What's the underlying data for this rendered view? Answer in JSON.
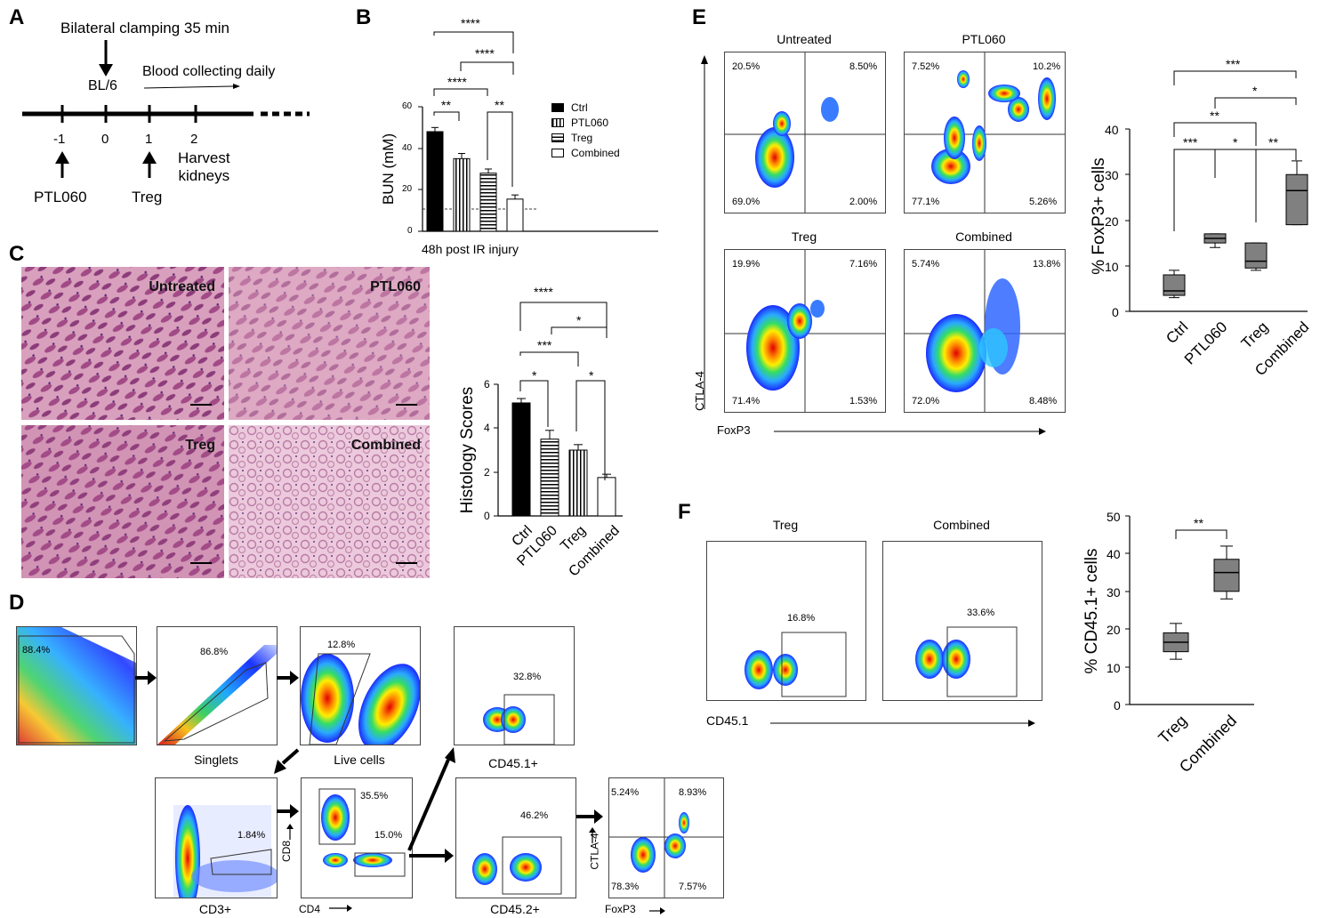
{
  "panels": {
    "A": {
      "label": "A",
      "clamping": "Bilateral clamping 35 min",
      "strain": "BL/6",
      "blood": "Blood collecting daily",
      "ticks": [
        "-1",
        "0",
        "1",
        "2"
      ],
      "ptl": "PTL060",
      "treg": "Treg",
      "harvest": "Harvest\nkidneys"
    },
    "B": {
      "label": "B",
      "ylabel": "BUN (mM)",
      "xlabel": "48h post IR injury",
      "yticks": [
        "0",
        "20",
        "40",
        "60"
      ],
      "legend": [
        "Ctrl",
        "PTL060",
        "Treg",
        "Combined"
      ],
      "sig": [
        "****",
        "****",
        "****",
        "**",
        "**"
      ]
    },
    "C": {
      "label": "C",
      "images": [
        "Untreated",
        "PTL060",
        "Treg",
        "Combined"
      ],
      "ylabel": "Histology Scores",
      "yticks": [
        "0",
        "2",
        "4",
        "6"
      ],
      "sig": [
        "****",
        "*",
        "***",
        "*",
        "*"
      ]
    },
    "D": {
      "label": "D",
      "p1": "88.4%",
      "p2": "86.8%",
      "p3": "12.8%",
      "p4": "32.8%",
      "n2": "Singlets",
      "n3": "Live cells",
      "n4": "CD45.1+",
      "p5": "1.84%",
      "n5": "CD3+",
      "p6a": "35.5%",
      "p6b": "15.0%",
      "cd8": "CD8",
      "cd4": "CD4",
      "p7": "46.2%",
      "n7": "CD45.2+",
      "q1": "5.24%",
      "q2": "8.93%",
      "q3": "78.3%",
      "q4": "7.57%",
      "ctla": "CTLA-4",
      "foxp3": "FoxP3"
    },
    "E": {
      "label": "E",
      "plots": [
        {
          "title": "Untreated",
          "q": [
            "20.5%",
            "8.50%",
            "69.0%",
            "2.00%"
          ]
        },
        {
          "title": "PTL060",
          "q": [
            "7.52%",
            "10.2%",
            "77.1%",
            "5.26%"
          ]
        },
        {
          "title": "Treg",
          "q": [
            "19.9%",
            "7.16%",
            "71.4%",
            "1.53%"
          ]
        },
        {
          "title": "Combined",
          "q": [
            "5.74%",
            "13.8%",
            "72.0%",
            "8.48%"
          ]
        }
      ],
      "yaxis": "CTLA-4",
      "xaxis": "FoxP3",
      "ylabel": "% FoxP3+ cells",
      "yticks": [
        "0",
        "10",
        "20",
        "30",
        "40"
      ],
      "sig": [
        "***",
        "*",
        "**",
        "***",
        "*",
        "**"
      ]
    },
    "F": {
      "label": "F",
      "plots": [
        {
          "title": "Treg",
          "pct": "16.8%"
        },
        {
          "title": "Combined",
          "pct": "33.6%"
        }
      ],
      "xaxis": "CD45.1",
      "ylabel": "% CD45.1+ cells",
      "yticks": [
        "0",
        "10",
        "20",
        "30",
        "40",
        "50"
      ],
      "sig": "**"
    }
  },
  "chart_data": [
    {
      "type": "bar",
      "title": "",
      "xlabel": "48h post IR injury",
      "ylabel": "BUN (mM)",
      "categories": [
        "Ctrl",
        "PTL060",
        "Treg",
        "Combined"
      ],
      "values": [
        48,
        35,
        28,
        15.5
      ],
      "errors": [
        2,
        2.5,
        2,
        2
      ],
      "ylim": [
        0,
        60
      ],
      "baseline": 11
    },
    {
      "type": "bar",
      "title": "",
      "ylabel": "Histology Scores",
      "categories": [
        "Ctrl",
        "PTL060",
        "Treg",
        "Combined"
      ],
      "values": [
        5.15,
        3.5,
        3.0,
        1.75
      ],
      "errors": [
        0.2,
        0.4,
        0.25,
        0.15
      ],
      "ylim": [
        0,
        6
      ]
    },
    {
      "type": "box",
      "title": "",
      "ylabel": "% FoxP3+ cells",
      "categories": [
        "Ctrl",
        "PTL060",
        "Treg",
        "Combined"
      ],
      "boxes": [
        {
          "min": 3,
          "q1": 3.5,
          "median": 4.5,
          "q3": 8,
          "max": 9
        },
        {
          "min": 14,
          "q1": 15,
          "median": 16,
          "q3": 17,
          "max": 17
        },
        {
          "min": 9,
          "q1": 9.5,
          "median": 11,
          "q3": 15,
          "max": 15
        },
        {
          "min": 19,
          "q1": 19,
          "median": 26.5,
          "q3": 30,
          "max": 33
        }
      ],
      "ylim": [
        0,
        40
      ]
    },
    {
      "type": "box",
      "title": "",
      "ylabel": "% CD45.1+ cells",
      "categories": [
        "Treg",
        "Combined"
      ],
      "boxes": [
        {
          "min": 12,
          "q1": 14,
          "median": 16.5,
          "q3": 19,
          "max": 21.5
        },
        {
          "min": 28,
          "q1": 30,
          "median": 35,
          "q3": 38.5,
          "max": 42
        }
      ],
      "ylim": [
        0,
        50
      ]
    }
  ]
}
